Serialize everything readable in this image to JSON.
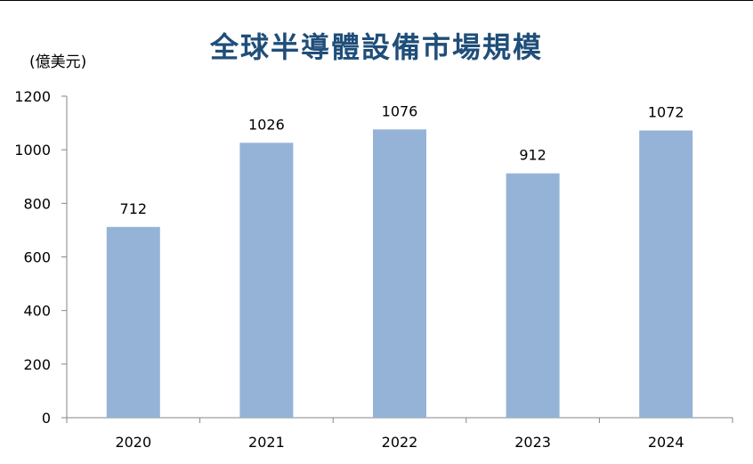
{
  "chart_data": {
    "type": "bar",
    "title": "全球半導體設備市場規模",
    "unit_label": "(億美元)",
    "categories": [
      "2020",
      "2021",
      "2022",
      "2023",
      "2024"
    ],
    "values": [
      712,
      1026,
      1076,
      912,
      1072
    ],
    "data_labels": [
      "712",
      "1026",
      "1076",
      "912",
      "1072"
    ],
    "y_ticks": [
      "0",
      "200",
      "400",
      "600",
      "800",
      "1000",
      "1200"
    ],
    "ylim": [
      0,
      1200
    ],
    "grid": false,
    "legend": "none",
    "bar_color": "#95B3D7",
    "title_color": "#1F4E79"
  }
}
